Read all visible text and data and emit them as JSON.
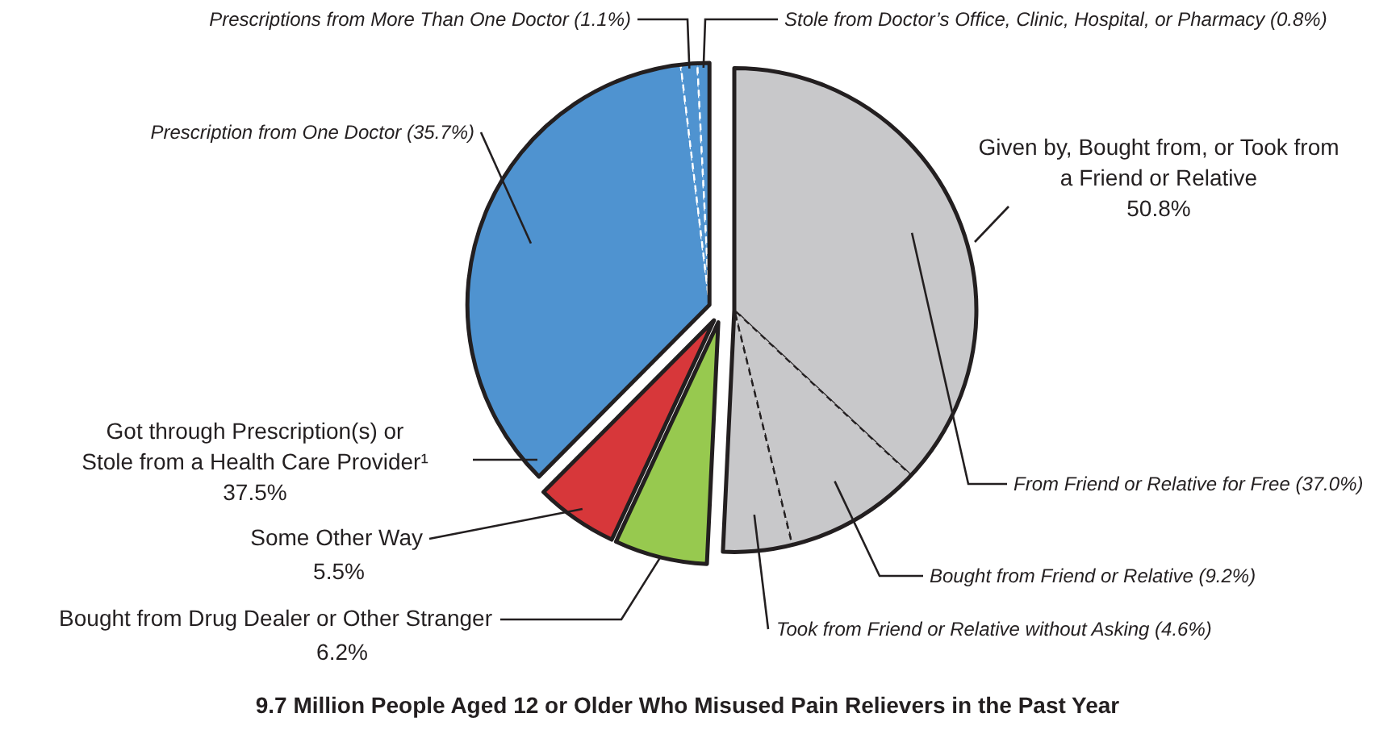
{
  "chart_data": {
    "type": "pie",
    "title": "9.7 Million People Aged 12 or Older Who Misused Pain Relievers in the Past Year",
    "categories": [
      "From Friend or Relative for Free",
      "Bought from Friend or Relative",
      "Took from Friend or Relative without Asking",
      "Bought from Drug Dealer or Other Stranger",
      "Some Other Way",
      "Prescription from One Doctor",
      "Prescriptions from More Than One Doctor",
      "Stole from Doctor’s Office, Clinic, Hospital, or Pharmacy"
    ],
    "values": [
      37.0,
      9.2,
      4.6,
      6.2,
      5.5,
      35.7,
      1.1,
      0.8
    ],
    "colors": [
      "#c8c8ca",
      "#c8c8ca",
      "#c8c8ca",
      "#97c94f",
      "#d7373a",
      "#4f93d0",
      "#4f93d0",
      "#4f93d0"
    ],
    "value_labels": [
      "(37.0%)",
      "(9.2%)",
      "(4.6%)",
      "6.2%",
      "5.5%",
      "(35.7%)",
      "(1.1%)",
      "(0.8%)"
    ],
    "annotations": [
      "Given by, Bought from, or Took from\na Friend or Relative\n50.8%",
      "Got through Prescription(s) or\nStole from a Health Care Provider¹\n37.5%"
    ]
  }
}
